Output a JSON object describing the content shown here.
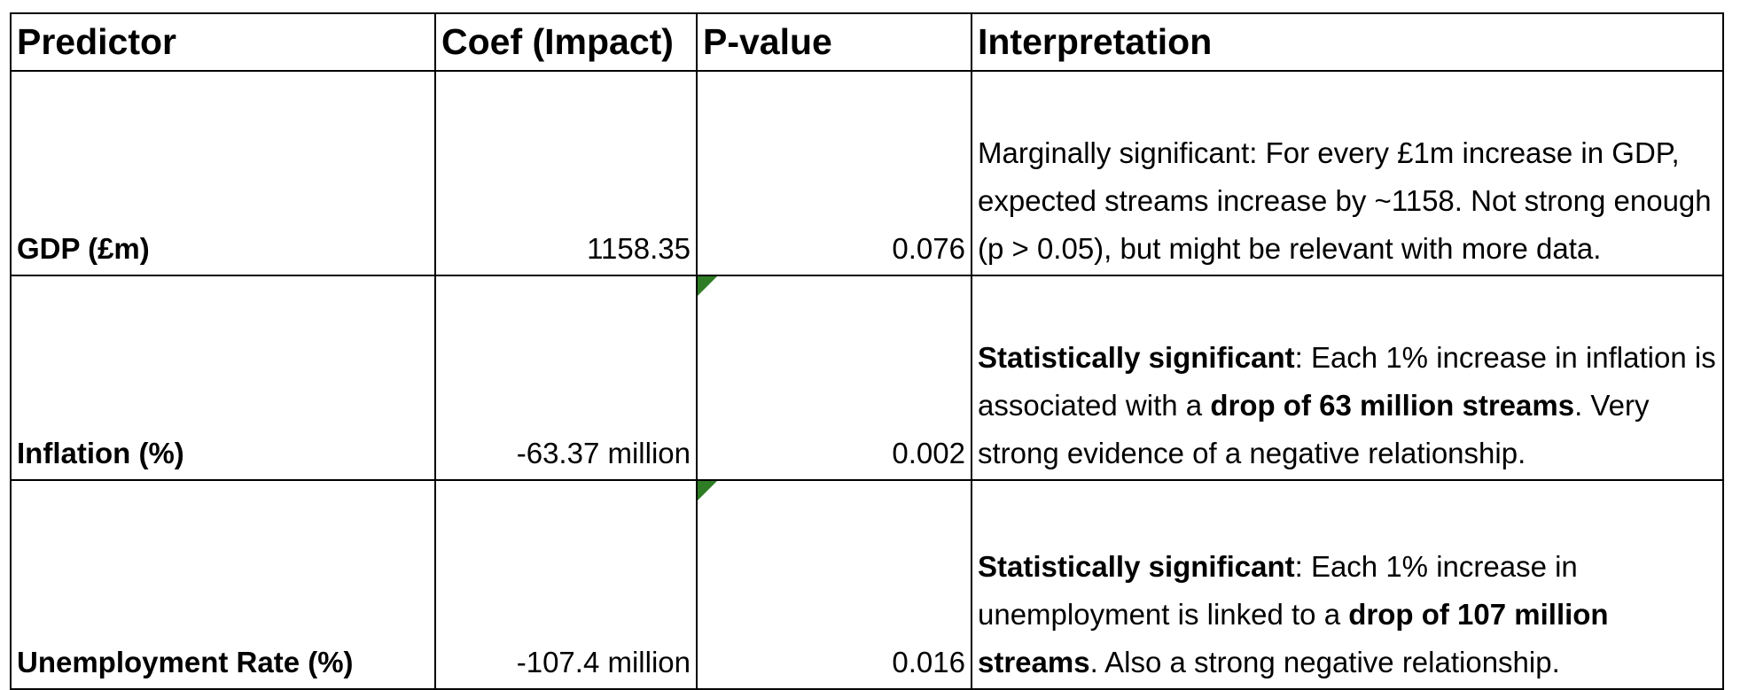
{
  "headers": {
    "predictor": "Predictor",
    "coef": "Coef (Impact)",
    "pvalue": "P-value",
    "interpretation": "Interpretation"
  },
  "rows": [
    {
      "predictor": "GDP (£m)",
      "coef": "1158.35",
      "pvalue": "0.076",
      "interp_parts": [
        {
          "text": "Marginally significant: For every £1m increase in GDP, expected streams increase by ~1158. Not strong enough (p > 0.05), but might be relevant with more data."
        }
      ]
    },
    {
      "predictor": "Inflation (%)",
      "coef": "-63.37 million",
      "pvalue": "0.002",
      "interp_parts": [
        {
          "text": "Statistically significant",
          "bold": true
        },
        {
          "text": ": Each 1% increase in inflation is associated with a "
        },
        {
          "text": "drop of 63 million streams",
          "bold": true
        },
        {
          "text": ". Very strong evidence of a negative relationship."
        }
      ]
    },
    {
      "predictor": "Unemployment Rate (%)",
      "coef": "-107.4 million",
      "pvalue": "0.016",
      "interp_parts": [
        {
          "text": "Statistically significant",
          "bold": true
        },
        {
          "text": ": Each 1% increase in unemployment is linked to a "
        },
        {
          "text": "drop of 107 million streams",
          "bold": true
        },
        {
          "text": ". Also a strong negative relationship."
        }
      ]
    }
  ],
  "colors": {
    "border": "#000000",
    "cell_flag": "#2e7d24",
    "background": "#ffffff"
  }
}
